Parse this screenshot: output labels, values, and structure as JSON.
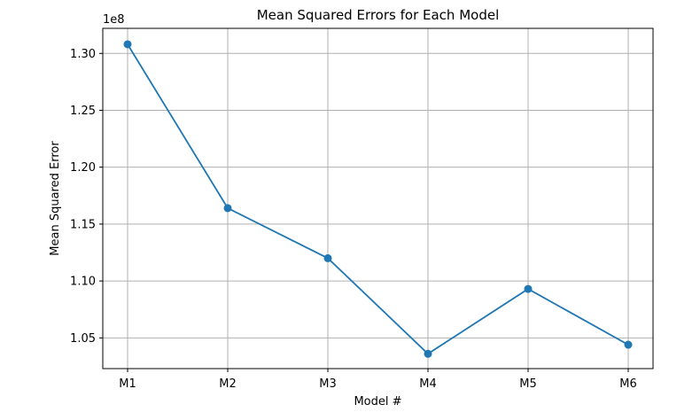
{
  "chart_data": {
    "type": "line",
    "title": "Mean Squared Errors for Each Model",
    "xlabel": "Model #",
    "ylabel": "Mean Squared Error",
    "y_offset_label": "1e8",
    "categories": [
      "M1",
      "M2",
      "M3",
      "M4",
      "M5",
      "M6"
    ],
    "series": [
      {
        "values": [
          130800000,
          116400000,
          112000000,
          103600000,
          109300000,
          104400000
        ]
      }
    ],
    "ylim": [
      102300000,
      132200000
    ],
    "yticks": [
      1.05,
      1.1,
      1.15,
      1.2,
      1.25,
      1.3
    ],
    "ytick_labels": [
      "1.05",
      "1.10",
      "1.15",
      "1.20",
      "1.25",
      "1.30"
    ],
    "grid": true,
    "marker": "circle",
    "line_color": "#1f77b4"
  }
}
